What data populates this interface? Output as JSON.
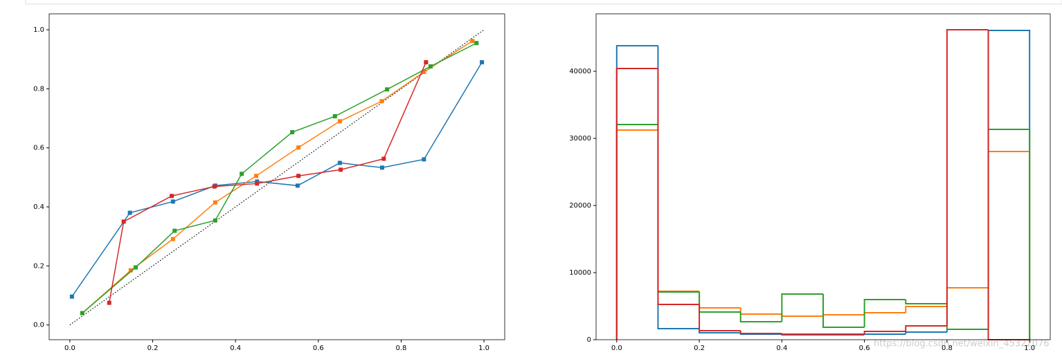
{
  "chart_data": [
    {
      "type": "line",
      "xlim": [
        -0.05,
        1.05
      ],
      "ylim": [
        -0.05,
        1.054
      ],
      "xticks": [
        {
          "value": 0,
          "label": "0.0"
        },
        {
          "value": 0.2,
          "label": "0.2"
        },
        {
          "value": 0.4,
          "label": "0.4"
        },
        {
          "value": 0.6,
          "label": "0.6"
        },
        {
          "value": 0.8,
          "label": "0.8"
        },
        {
          "value": 1,
          "label": "1.0"
        }
      ],
      "yticks": [
        {
          "value": 0,
          "label": "0.0"
        },
        {
          "value": 0.2,
          "label": "0.2"
        },
        {
          "value": 0.4,
          "label": "0.4"
        },
        {
          "value": 0.6,
          "label": "0.6"
        },
        {
          "value": 0.8,
          "label": "0.8"
        },
        {
          "value": 1,
          "label": "1.0"
        }
      ],
      "series": [
        {
          "color": "#000000",
          "linestyle": "dotted",
          "x": [
            0,
            1
          ],
          "values": [
            0,
            1
          ]
        },
        {
          "color": "#1f77b4",
          "marker": "square",
          "x": [
            0.005,
            0.145,
            0.249,
            0.351,
            0.452,
            0.55,
            0.652,
            0.754,
            0.855,
            0.995
          ],
          "values": [
            0.096,
            0.38,
            0.418,
            0.472,
            0.486,
            0.472,
            0.549,
            0.533,
            0.561,
            0.89
          ]
        },
        {
          "color": "#ff7f0e",
          "marker": "square",
          "x": [
            0.03,
            0.147,
            0.249,
            0.351,
            0.45,
            0.552,
            0.652,
            0.753,
            0.855,
            0.972
          ],
          "values": [
            0.04,
            0.185,
            0.291,
            0.415,
            0.505,
            0.601,
            0.69,
            0.758,
            0.857,
            0.962
          ]
        },
        {
          "color": "#2ca02c",
          "marker": "square",
          "x": [
            0.03,
            0.159,
            0.253,
            0.351,
            0.415,
            0.537,
            0.64,
            0.766,
            0.871,
            0.982
          ],
          "values": [
            0.04,
            0.195,
            0.319,
            0.354,
            0.512,
            0.653,
            0.707,
            0.798,
            0.876,
            0.955
          ]
        },
        {
          "color": "#d62728",
          "marker": "square",
          "x": [
            0.095,
            0.13,
            0.246,
            0.349,
            0.452,
            0.552,
            0.654,
            0.758,
            0.86
          ],
          "values": [
            0.075,
            0.35,
            0.437,
            0.469,
            0.479,
            0.505,
            0.526,
            0.563,
            0.89
          ]
        }
      ]
    },
    {
      "type": "histogram",
      "xlim": [
        -0.05,
        1.05
      ],
      "ylim": [
        0,
        48560
      ],
      "xticks": [
        {
          "value": 0,
          "label": "0.0"
        },
        {
          "value": 0.2,
          "label": "0.2"
        },
        {
          "value": 0.4,
          "label": "0.4"
        },
        {
          "value": 0.6,
          "label": "0.6"
        },
        {
          "value": 0.8,
          "label": "0.8"
        },
        {
          "value": 1,
          "label": "1.0"
        }
      ],
      "yticks": [
        0,
        10000,
        20000,
        30000,
        40000
      ],
      "bins": [
        0,
        0.1,
        0.2,
        0.3,
        0.4,
        0.5,
        0.6,
        0.7,
        0.8,
        0.9,
        1
      ],
      "series": [
        {
          "color": "#1f77b4",
          "values": [
            43800,
            1650,
            1030,
            820,
            720,
            720,
            820,
            1130,
            1550,
            46080
          ]
        },
        {
          "color": "#ff7f0e",
          "values": [
            31240,
            7220,
            4740,
            3810,
            3500,
            3710,
            4020,
            4950,
            7730,
            28040
          ]
        },
        {
          "color": "#2ca02c",
          "values": [
            32060,
            7110,
            4120,
            2680,
            6800,
            1860,
            5980,
            5360,
            1550,
            31340
          ]
        },
        {
          "color": "#d62728",
          "values": [
            40410,
            5260,
            1340,
            930,
            820,
            820,
            1240,
            2060,
            46190,
            0
          ]
        }
      ]
    }
  ],
  "watermark": "https://blog.csdn.net/weixin_45322076"
}
